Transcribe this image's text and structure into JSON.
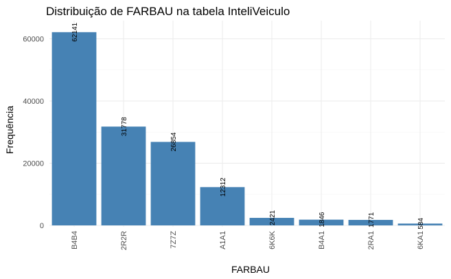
{
  "chart_data": {
    "type": "bar",
    "title": "Distribuição de FARBAU na tabela InteliVeiculo",
    "xlabel": "FARBAU",
    "ylabel": "Frequência",
    "categories": [
      "B4B4",
      "2R2R",
      "7Z7Z",
      "A1A1",
      "6K6K",
      "B4A1",
      "2RA1",
      "6KA1"
    ],
    "values": [
      62141,
      31778,
      26854,
      12312,
      2421,
      1846,
      1771,
      584
    ],
    "data_labels": [
      "62141",
      "31778",
      "26854",
      "12312",
      "2421",
      "1846",
      "1771",
      "584"
    ],
    "y_ticks": [
      0,
      20000,
      40000,
      60000
    ],
    "y_tick_labels": [
      "0",
      "20000",
      "40000",
      "60000"
    ],
    "ylim": [
      0,
      65000
    ],
    "grid": true,
    "legend": "none",
    "colors": {
      "bar": "#4682B4",
      "grid": "#EBEBEB",
      "tick_text": "#4D4D4D"
    }
  }
}
